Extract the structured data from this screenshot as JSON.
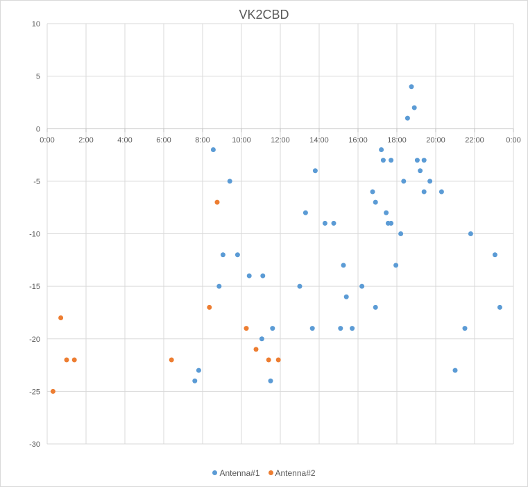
{
  "chart_data": {
    "type": "scatter",
    "title": "VK2CBD",
    "xlabel": "",
    "ylabel": "",
    "xlim": [
      0,
      24
    ],
    "ylim": [
      -30,
      10
    ],
    "y_ticks": [
      10,
      5,
      0,
      -5,
      -10,
      -15,
      -20,
      -25,
      -30
    ],
    "x_ticks": [
      0,
      2,
      4,
      6,
      8,
      10,
      12,
      14,
      16,
      18,
      20,
      22,
      24
    ],
    "x_tick_labels": [
      "0:00",
      "2:00",
      "4:00",
      "6:00",
      "8:00",
      "10:00",
      "12:00",
      "14:00",
      "16:00",
      "18:00",
      "20:00",
      "22:00",
      "0:00"
    ],
    "grid": true,
    "legend_position": "bottom",
    "series": [
      {
        "name": "Antenna#1",
        "color": "#5b9bd5",
        "points": [
          [
            7.6,
            -24
          ],
          [
            7.8,
            -23
          ],
          [
            8.55,
            -2
          ],
          [
            8.85,
            -15
          ],
          [
            9.05,
            -12
          ],
          [
            9.4,
            -5
          ],
          [
            9.8,
            -12
          ],
          [
            10.4,
            -14
          ],
          [
            11.05,
            -20
          ],
          [
            11.1,
            -14
          ],
          [
            11.5,
            -24
          ],
          [
            11.6,
            -19
          ],
          [
            13.0,
            -15
          ],
          [
            13.3,
            -8
          ],
          [
            13.65,
            -19
          ],
          [
            13.8,
            -4
          ],
          [
            14.3,
            -9
          ],
          [
            14.75,
            -9
          ],
          [
            15.1,
            -19
          ],
          [
            15.25,
            -13
          ],
          [
            15.4,
            -16
          ],
          [
            15.7,
            -19
          ],
          [
            16.2,
            -15
          ],
          [
            16.75,
            -6
          ],
          [
            16.9,
            -7
          ],
          [
            16.9,
            -17
          ],
          [
            17.2,
            -2
          ],
          [
            17.3,
            -3
          ],
          [
            17.45,
            -8
          ],
          [
            17.55,
            -9
          ],
          [
            17.7,
            -9
          ],
          [
            17.7,
            -3
          ],
          [
            17.95,
            -13
          ],
          [
            18.2,
            -10
          ],
          [
            18.35,
            -5
          ],
          [
            18.55,
            1
          ],
          [
            18.75,
            4
          ],
          [
            18.9,
            2
          ],
          [
            19.05,
            -3
          ],
          [
            19.2,
            -4
          ],
          [
            19.4,
            -3
          ],
          [
            19.4,
            -6
          ],
          [
            19.7,
            -5
          ],
          [
            20.3,
            -6
          ],
          [
            21.0,
            -23
          ],
          [
            21.5,
            -19
          ],
          [
            21.8,
            -10
          ],
          [
            23.05,
            -12
          ],
          [
            23.3,
            -17
          ]
        ]
      },
      {
        "name": "Antenna#2",
        "color": "#ed7d31",
        "points": [
          [
            0.3,
            -25
          ],
          [
            0.7,
            -18
          ],
          [
            1.0,
            -22
          ],
          [
            1.4,
            -22
          ],
          [
            6.4,
            -22
          ],
          [
            8.35,
            -17
          ],
          [
            8.75,
            -7
          ],
          [
            10.25,
            -19
          ],
          [
            10.75,
            -21
          ],
          [
            11.4,
            -22
          ],
          [
            11.9,
            -22
          ]
        ]
      }
    ]
  }
}
